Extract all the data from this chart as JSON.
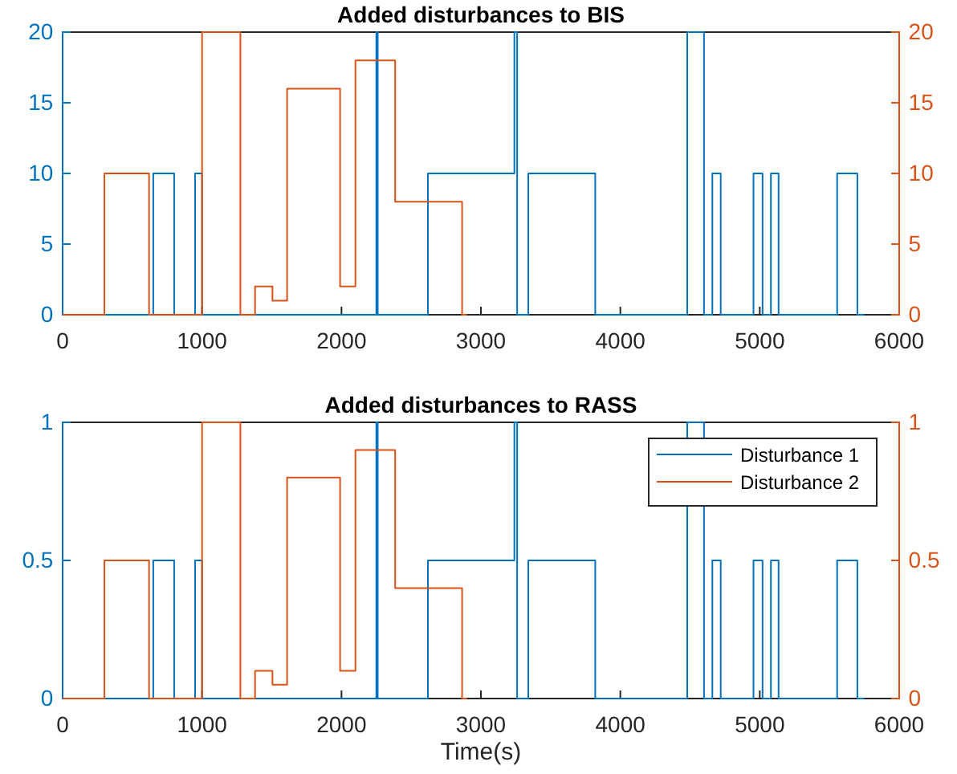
{
  "chart_data": [
    {
      "type": "step",
      "title": "Added disturbances to BIS",
      "xlim": [
        0,
        6000
      ],
      "xticks": [
        0,
        1000,
        2000,
        3000,
        4000,
        5000,
        6000
      ],
      "ylim": [
        0,
        20
      ],
      "yticks": [
        0,
        5,
        10,
        15,
        20
      ],
      "y2lim": [
        0,
        20
      ],
      "y2ticks": [
        0,
        5,
        10,
        15,
        20
      ],
      "legend": false,
      "series": [
        {
          "color": "#0072bd",
          "axis": "y",
          "x": [
            0,
            650,
            800,
            950,
            1000,
            2250,
            2260,
            2620,
            3240,
            3260,
            3340,
            3820,
            4480,
            4600,
            4660,
            4720,
            4955,
            5020,
            5080,
            5135,
            5555,
            5700,
            5750
          ],
          "values": [
            0,
            10,
            0,
            10,
            0,
            20,
            0,
            10,
            20,
            0,
            10,
            0,
            20,
            0,
            10,
            0,
            10,
            0,
            10,
            0,
            10,
            0,
            0
          ]
        },
        {
          "color": "#d95319",
          "axis": "y2",
          "x": [
            0,
            300,
            620,
            1000,
            1275,
            1380,
            1505,
            1610,
            1990,
            2100,
            2385,
            2865,
            2900
          ],
          "values": [
            0,
            10,
            0,
            20,
            0,
            2,
            1,
            16,
            2,
            18,
            8,
            0,
            0
          ]
        }
      ]
    },
    {
      "type": "step",
      "title": "Added disturbances to RASS",
      "xlabel": "Time(s)",
      "xlim": [
        0,
        6000
      ],
      "xticks": [
        0,
        1000,
        2000,
        3000,
        4000,
        5000,
        6000
      ],
      "ylim": [
        0,
        1
      ],
      "yticks": [
        0,
        0.5,
        1
      ],
      "y2lim": [
        0,
        1
      ],
      "y2ticks": [
        0,
        0.5,
        1
      ],
      "legend": "top right",
      "series": [
        {
          "name": "Disturbance 1",
          "color": "#0072bd",
          "axis": "y",
          "x": [
            0,
            650,
            800,
            950,
            1000,
            2250,
            2260,
            2620,
            3240,
            3260,
            3340,
            3820,
            4480,
            4600,
            4660,
            4720,
            4955,
            5020,
            5080,
            5135,
            5555,
            5700,
            5750
          ],
          "values": [
            0,
            0.5,
            0,
            0.5,
            0,
            1,
            0,
            0.5,
            1,
            0,
            0.5,
            0,
            1,
            0,
            0.5,
            0,
            0.5,
            0,
            0.5,
            0,
            0.5,
            0,
            0
          ]
        },
        {
          "name": "Disturbance 2",
          "color": "#d95319",
          "axis": "y2",
          "x": [
            0,
            300,
            620,
            1000,
            1275,
            1380,
            1505,
            1610,
            1990,
            2100,
            2385,
            2865,
            2900
          ],
          "values": [
            0,
            0.5,
            0,
            1,
            0,
            0.1,
            0.05,
            0.8,
            0.1,
            0.9,
            0.4,
            0,
            0
          ]
        }
      ]
    }
  ]
}
